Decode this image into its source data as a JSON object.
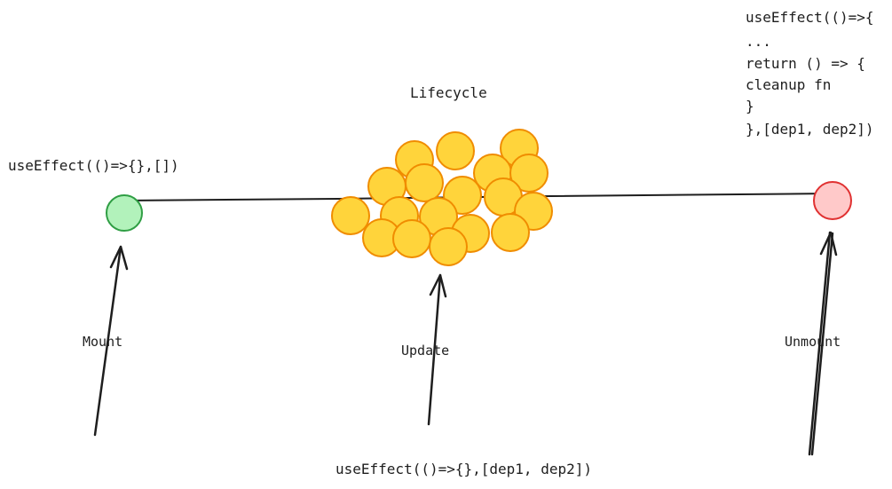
{
  "diagram": {
    "title": "Lifecycle",
    "stages": {
      "mount": "Mount",
      "update": "Update",
      "unmount": "Unmount"
    },
    "code": {
      "mount": "useEffect(()=>{},[])",
      "update": "useEffect(()=>{},[dep1, dep2])",
      "unmount": [
        "useEffect(()=>{",
        "...",
        "return () => {",
        "cleanup fn",
        "}",
        "},[dep1, dep2])"
      ]
    },
    "colors": {
      "mount_fill": "#b2f2bb",
      "mount_stroke": "#2f9e44",
      "unmount_fill": "#ffc9c9",
      "unmount_stroke": "#e03131",
      "update_fill": "#ffd43b",
      "update_stroke": "#f08c00",
      "line": "#1e1e1e"
    }
  }
}
